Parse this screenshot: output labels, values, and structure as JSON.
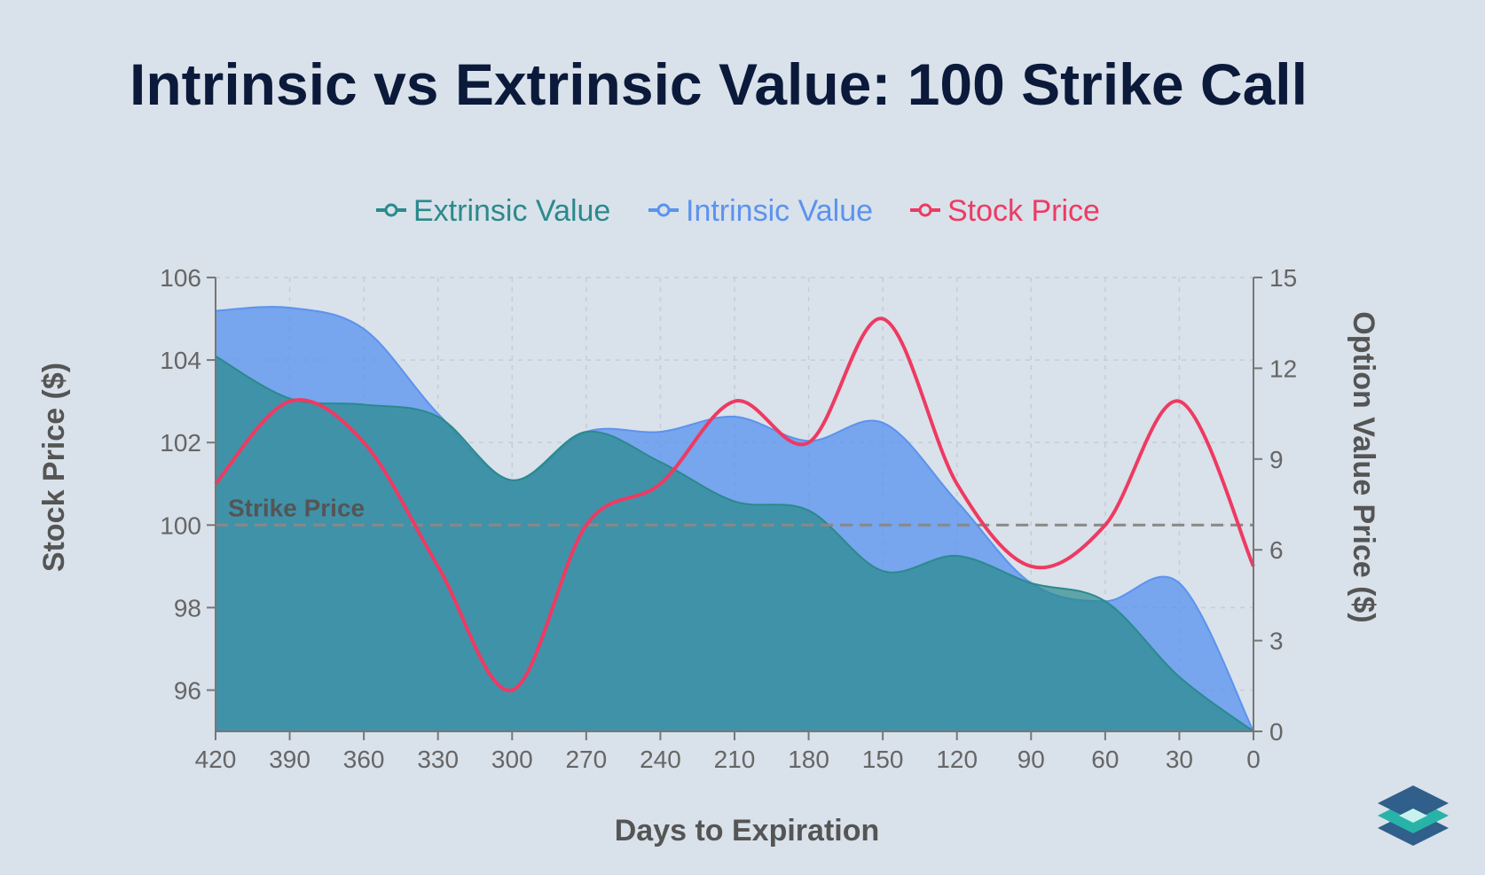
{
  "title": "Intrinsic vs Extrinsic Value: 100 Strike Call",
  "colors": {
    "background": "#d9e1ea",
    "extrinsic": "#2a8a8c",
    "intrinsic": "#5b93ee",
    "stock": "#ee3a62",
    "strike_line": "#888888",
    "title": "#0b1a3a"
  },
  "logo_icon": "layered-diamond-logo-icon",
  "chart_data": {
    "type": "area",
    "xlabel": "Days to Expiration",
    "ylabel_left": "Stock Price ($)",
    "ylabel_right": "Option Value Price ($)",
    "x": [
      420,
      390,
      360,
      330,
      300,
      270,
      240,
      210,
      180,
      150,
      120,
      90,
      60,
      30,
      0
    ],
    "x_ticks": [
      "420",
      "390",
      "360",
      "330",
      "300",
      "270",
      "240",
      "210",
      "180",
      "150",
      "120",
      "90",
      "60",
      "30",
      "0"
    ],
    "x_reversed": true,
    "y_left_range": [
      95,
      106
    ],
    "y_left_ticks": [
      "96",
      "98",
      "100",
      "102",
      "104",
      "106"
    ],
    "y_right_range": [
      0,
      15
    ],
    "y_right_ticks": [
      "0",
      "3",
      "6",
      "9",
      "12",
      "15"
    ],
    "grid": true,
    "legend_position": "top",
    "series": [
      {
        "name": "Extrinsic Value",
        "axis": "right",
        "type": "area",
        "values": [
          12.4,
          11.0,
          10.8,
          10.4,
          8.3,
          9.9,
          8.9,
          7.6,
          7.3,
          5.3,
          5.8,
          4.9,
          4.3,
          1.8,
          0
        ]
      },
      {
        "name": "Intrinsic Value",
        "axis": "right",
        "type": "stacked-area",
        "values": [
          1.5,
          3.0,
          2.5,
          0.1,
          0,
          0,
          1.0,
          2.8,
          2.3,
          4.9,
          1.8,
          0,
          0,
          3.1,
          0
        ]
      },
      {
        "name": "Stock Price",
        "axis": "left",
        "type": "line",
        "values": [
          101,
          103,
          102,
          99,
          96,
          100,
          101,
          103,
          102,
          105,
          101,
          99,
          100,
          103,
          99
        ]
      }
    ],
    "annotations": [
      {
        "text": "Strike Price",
        "axis": "left",
        "y": 100
      }
    ]
  }
}
